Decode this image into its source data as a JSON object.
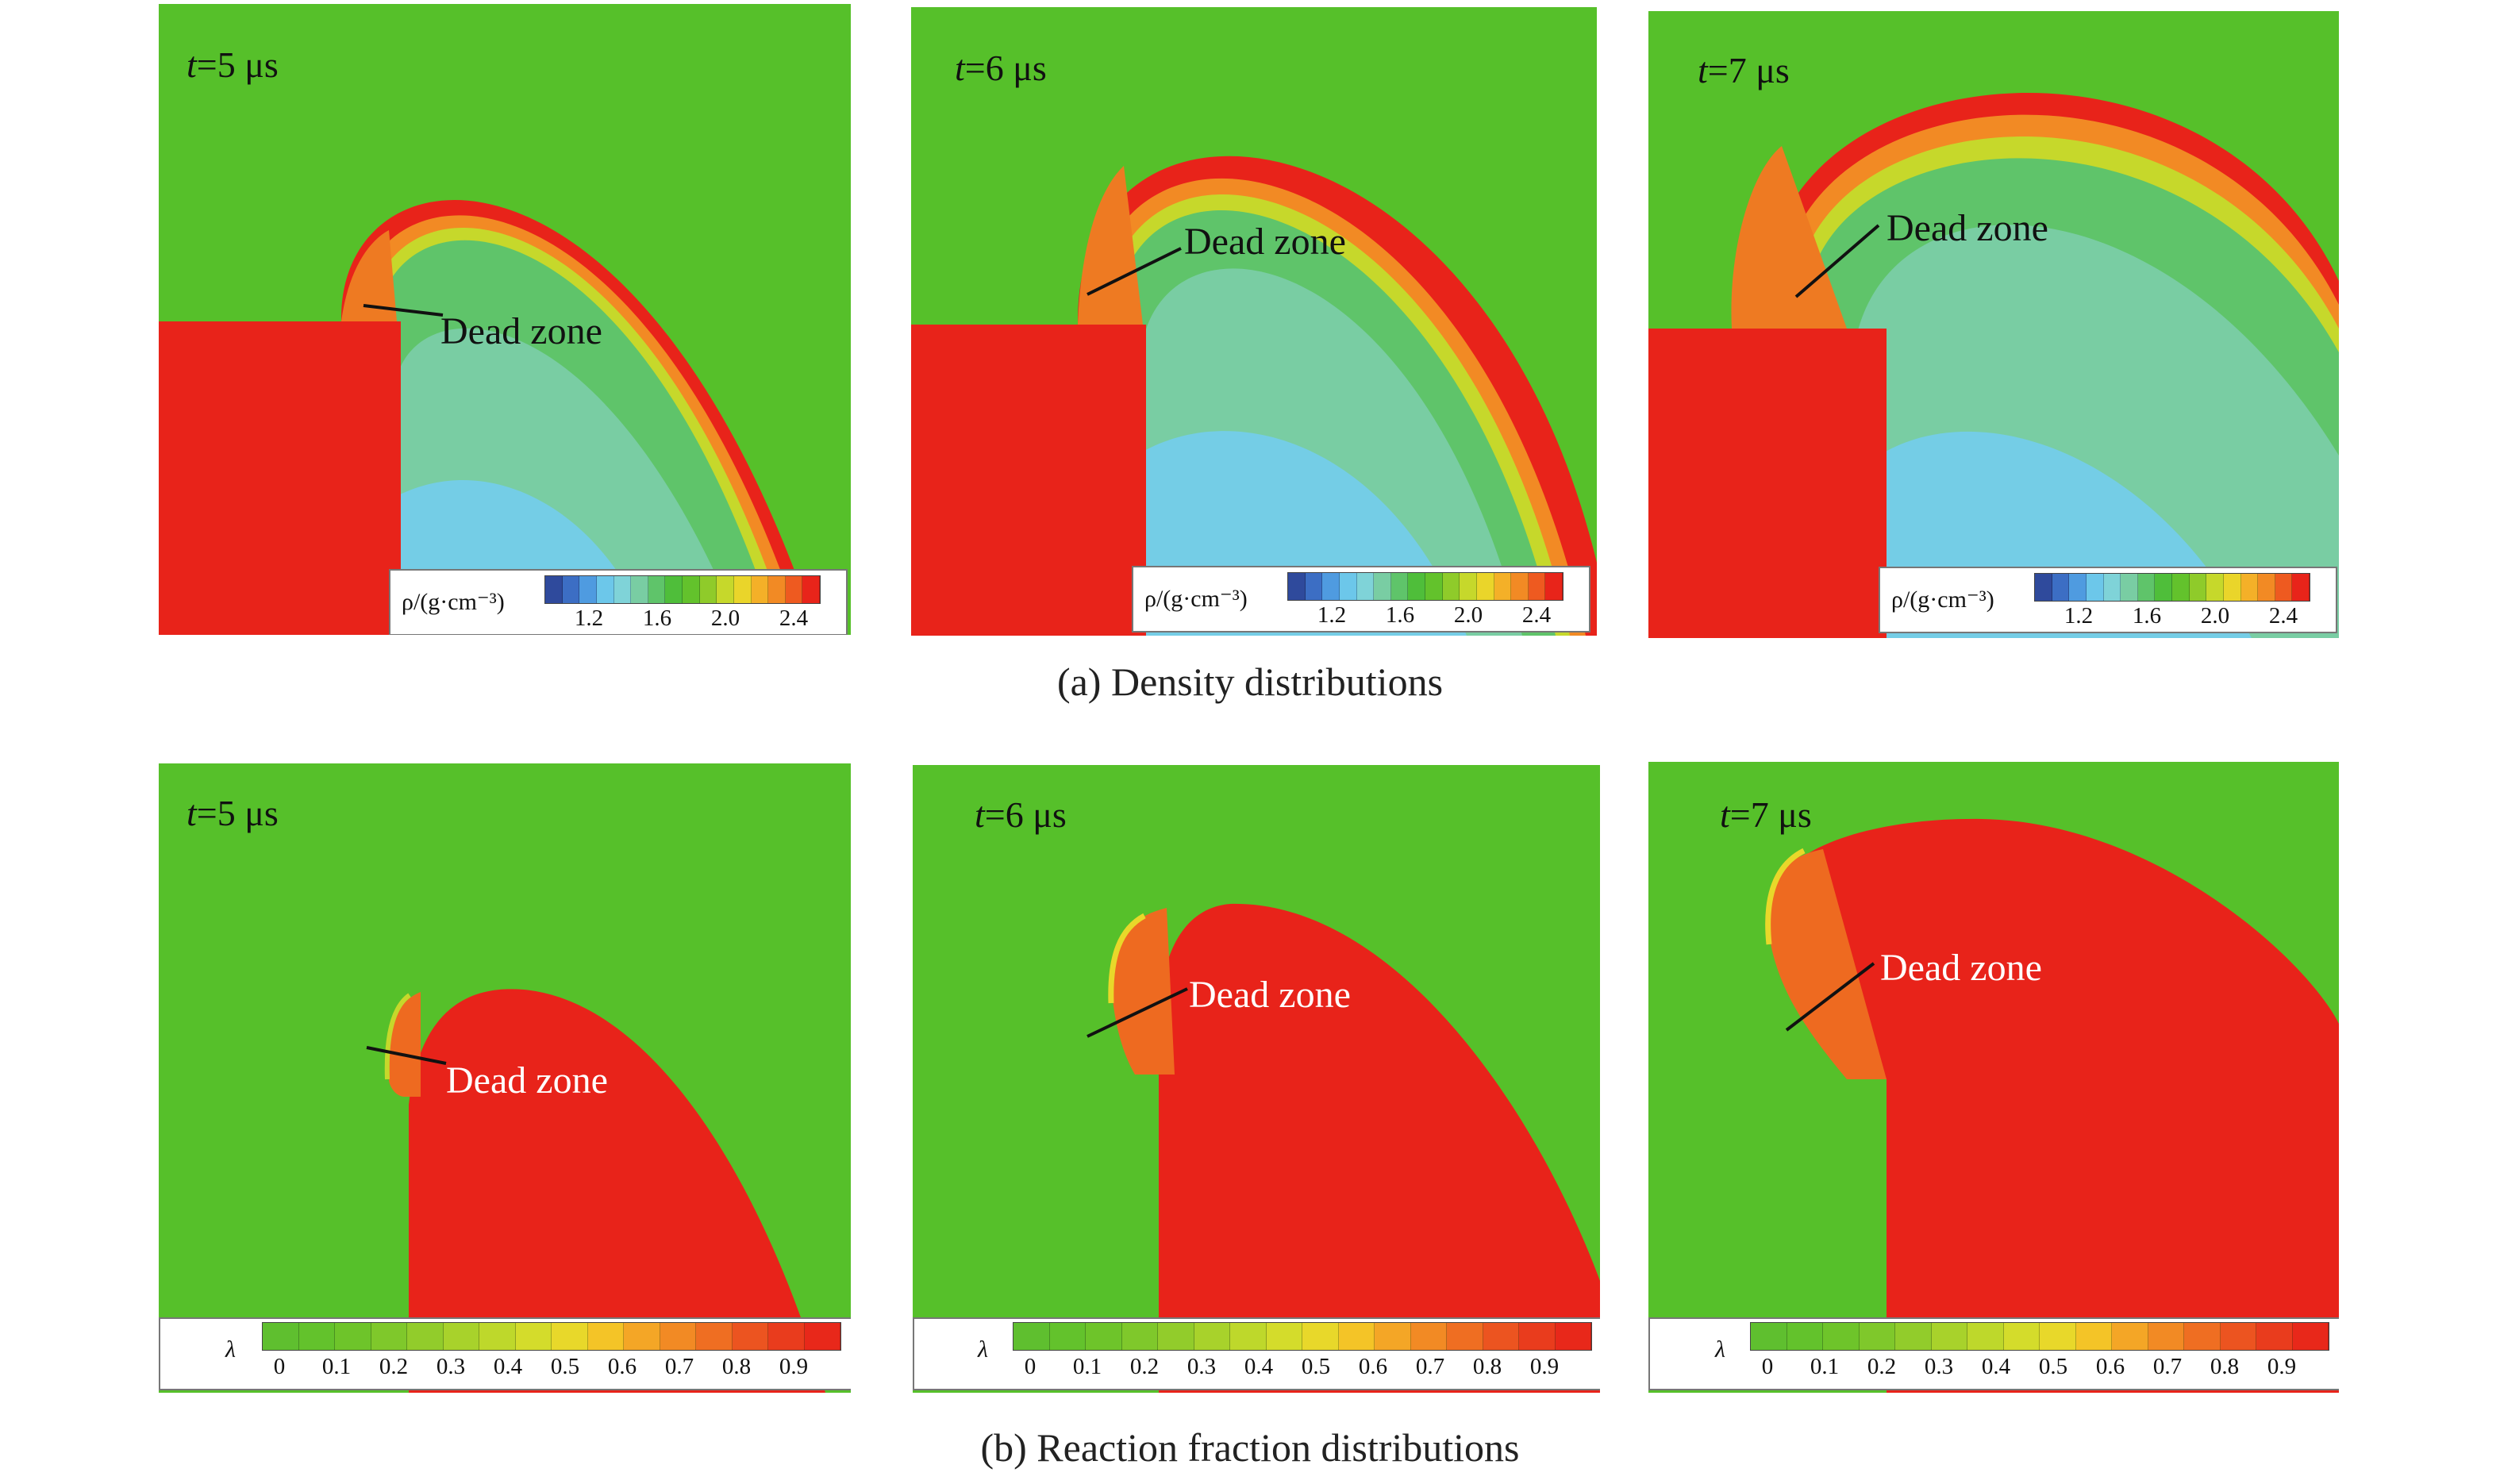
{
  "captions": {
    "density": "(a) Density distributions",
    "reaction": "(b) Reaction fraction distributions"
  },
  "dead_zone_label": "Dead zone",
  "time_var": "t",
  "density": {
    "legend_symbol_html": "ρ/(g·cm⁻³)",
    "legend_ticks": [
      "1.2",
      "1.6",
      "2.0",
      "2.4"
    ],
    "colormap": [
      "#2f4a9c",
      "#3c6ec4",
      "#4f9be0",
      "#6cc7ea",
      "#7fd3d8",
      "#79cda3",
      "#5fc46a",
      "#4fbe3a",
      "#63c22c",
      "#8fcb2a",
      "#c6d82b",
      "#ead52a",
      "#f4b028",
      "#f28a24",
      "#ee5a20",
      "#e8241a"
    ],
    "panels": [
      {
        "time": "=5 μs"
      },
      {
        "time": "=6 μs"
      },
      {
        "time": "=7 μs"
      }
    ]
  },
  "reaction": {
    "legend_symbol": "λ",
    "legend_ticks": [
      "0",
      "0.1",
      "0.2",
      "0.3",
      "0.4",
      "0.5",
      "0.6",
      "0.7",
      "0.8",
      "0.9"
    ],
    "colormap": [
      "#5fbf2f",
      "#63c22c",
      "#6ec42a",
      "#7fc82b",
      "#92cc2b",
      "#a8d22b",
      "#bed82b",
      "#d4dc2b",
      "#e8d82a",
      "#f4c427",
      "#f4a626",
      "#f28a24",
      "#ef6e22",
      "#ec5420",
      "#e93c1d",
      "#e8281a"
    ],
    "panels": [
      {
        "time": "=5 μs"
      },
      {
        "time": "=6 μs"
      },
      {
        "time": "=7 μs"
      }
    ]
  },
  "colors": {
    "background_green": "#56c02a",
    "explosive_red": "#e8231a",
    "low_density_blue": "#74cde6"
  }
}
